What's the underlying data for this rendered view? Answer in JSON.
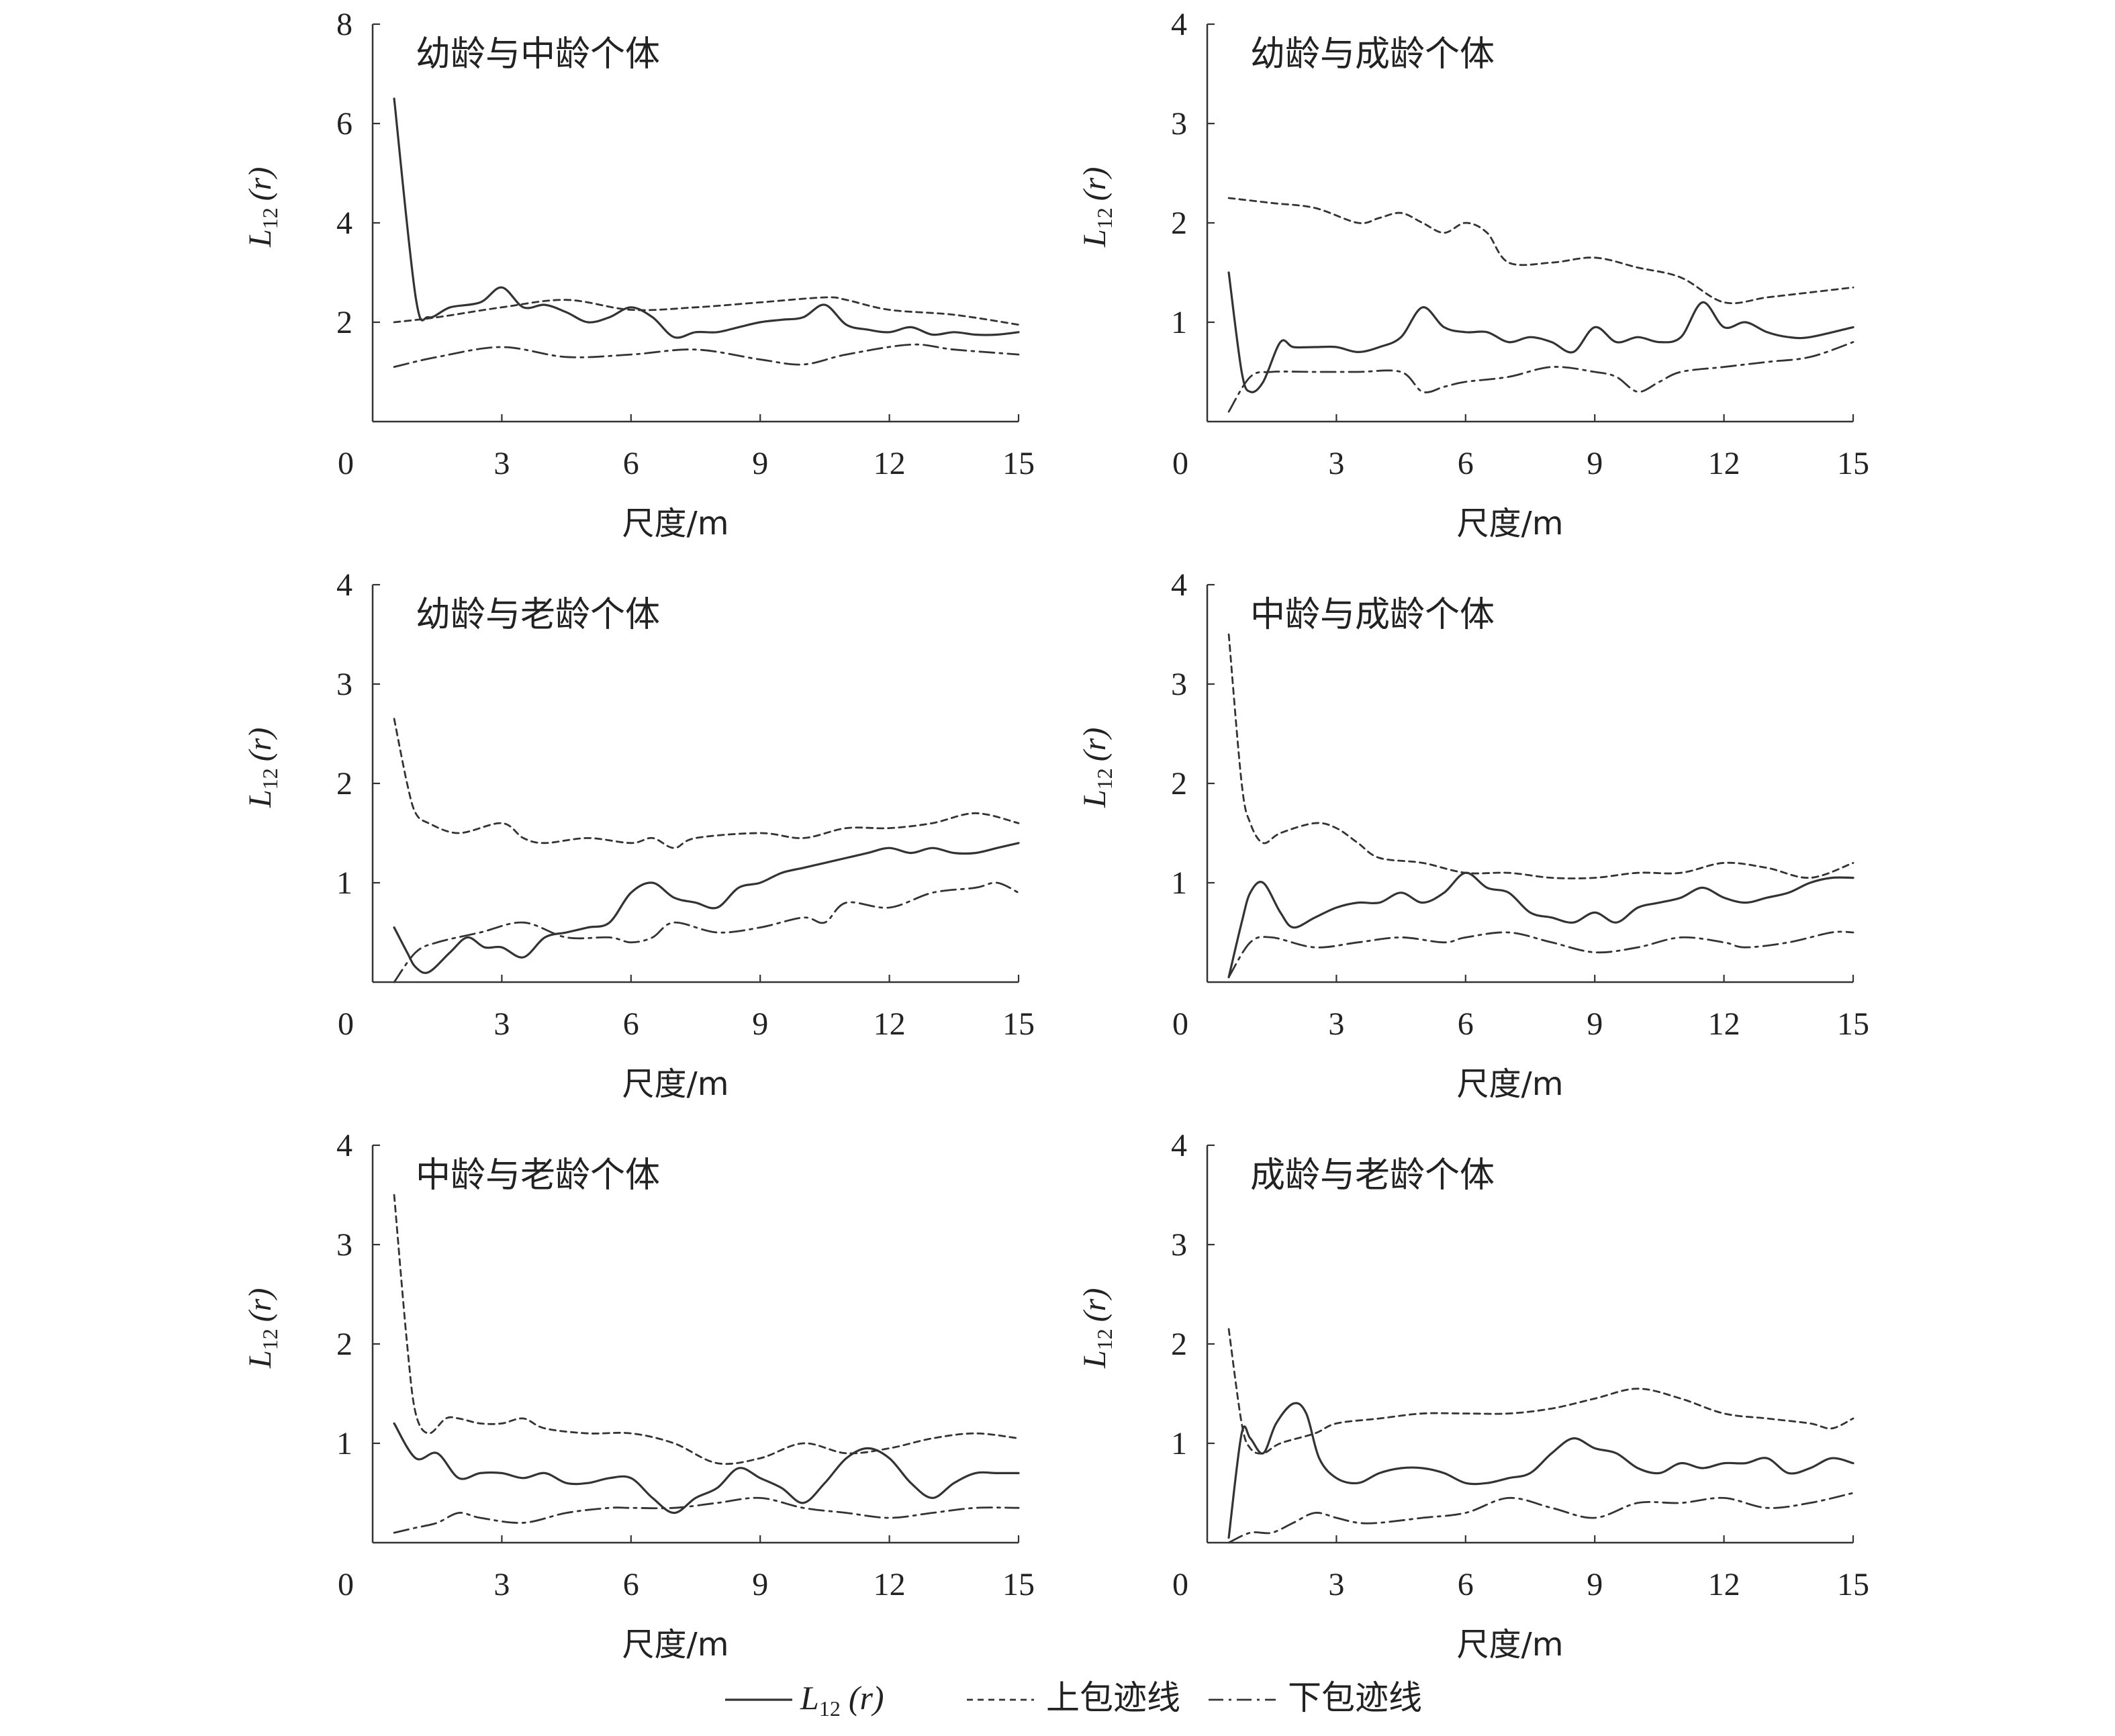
{
  "chart_data": [
    {
      "type": "line",
      "title": "幼龄与中龄个体",
      "xlabel": "尺度/m",
      "ylabel_main": "L",
      "ylabel_sub": "12",
      "ylabel_arg": "(r)",
      "xlim": [
        0,
        15
      ],
      "ylim": [
        0,
        8
      ],
      "xticks": [
        "0",
        "3",
        "6",
        "9",
        "12",
        "15"
      ],
      "yticks": [
        "2",
        "4",
        "6",
        "8"
      ],
      "series": [
        {
          "name": "L12(r)",
          "style": "solid",
          "x": [
            0.5,
            1.0,
            1.3,
            1.8,
            2.5,
            3.0,
            3.5,
            4.0,
            4.5,
            5.0,
            5.5,
            6.0,
            6.5,
            7.0,
            7.5,
            8.0,
            8.5,
            9.0,
            9.5,
            10.0,
            10.5,
            11.0,
            11.5,
            12.0,
            12.5,
            13.0,
            13.5,
            14.0,
            14.5,
            15.0
          ],
          "values": [
            6.5,
            2.5,
            2.1,
            2.3,
            2.4,
            2.7,
            2.3,
            2.35,
            2.2,
            2.0,
            2.1,
            2.3,
            2.1,
            1.7,
            1.8,
            1.8,
            1.9,
            2.0,
            2.05,
            2.1,
            2.35,
            1.95,
            1.85,
            1.8,
            1.9,
            1.75,
            1.8,
            1.75,
            1.75,
            1.8
          ]
        },
        {
          "name": "上包迹线",
          "style": "dashed",
          "x": [
            0.5,
            1.5,
            3.0,
            4.5,
            6.0,
            7.5,
            9.0,
            10.5,
            11.0,
            12.0,
            13.5,
            15.0
          ],
          "values": [
            2.0,
            2.1,
            2.3,
            2.45,
            2.25,
            2.3,
            2.4,
            2.5,
            2.45,
            2.25,
            2.15,
            1.95
          ]
        },
        {
          "name": "下包迹线",
          "style": "dashdot",
          "x": [
            0.5,
            1.5,
            3.0,
            4.5,
            6.0,
            7.5,
            9.0,
            10.0,
            11.0,
            12.5,
            13.5,
            15.0
          ],
          "values": [
            1.1,
            1.3,
            1.5,
            1.3,
            1.35,
            1.45,
            1.25,
            1.15,
            1.35,
            1.55,
            1.45,
            1.35
          ]
        }
      ]
    },
    {
      "type": "line",
      "title": "幼龄与成龄个体",
      "xlabel": "尺度/m",
      "ylabel_main": "L",
      "ylabel_sub": "12",
      "ylabel_arg": "(r)",
      "xlim": [
        0,
        15
      ],
      "ylim": [
        0,
        4
      ],
      "xticks": [
        "0",
        "3",
        "6",
        "9",
        "12",
        "15"
      ],
      "yticks": [
        "1",
        "2",
        "3",
        "4"
      ],
      "series": [
        {
          "name": "L12(r)",
          "style": "solid",
          "x": [
            0.5,
            0.8,
            1.0,
            1.3,
            1.7,
            2.0,
            2.5,
            3.0,
            3.5,
            4.0,
            4.5,
            5.0,
            5.5,
            6.0,
            6.5,
            7.0,
            7.5,
            8.0,
            8.5,
            9.0,
            9.5,
            10.0,
            10.5,
            11.0,
            11.5,
            12.0,
            12.5,
            13.0,
            13.5,
            14.0,
            15.0
          ],
          "values": [
            1.5,
            0.5,
            0.3,
            0.4,
            0.8,
            0.75,
            0.75,
            0.75,
            0.7,
            0.75,
            0.85,
            1.15,
            0.95,
            0.9,
            0.9,
            0.8,
            0.85,
            0.8,
            0.7,
            0.95,
            0.8,
            0.85,
            0.8,
            0.85,
            1.2,
            0.95,
            1.0,
            0.9,
            0.85,
            0.85,
            0.95
          ]
        },
        {
          "name": "上包迹线",
          "style": "dashed",
          "x": [
            0.5,
            1.5,
            2.5,
            3.5,
            4.0,
            4.5,
            5.0,
            5.5,
            6.0,
            6.5,
            7.0,
            8.0,
            9.0,
            10.0,
            11.0,
            12.0,
            13.0,
            14.0,
            15.0
          ],
          "values": [
            2.25,
            2.2,
            2.15,
            2.0,
            2.05,
            2.1,
            2.0,
            1.9,
            2.0,
            1.9,
            1.6,
            1.6,
            1.65,
            1.55,
            1.45,
            1.2,
            1.25,
            1.3,
            1.35
          ]
        },
        {
          "name": "下包迹线",
          "style": "dashdot",
          "x": [
            0.5,
            1.0,
            1.5,
            2.5,
            3.5,
            4.5,
            5.0,
            5.5,
            6.0,
            7.0,
            8.0,
            9.0,
            9.5,
            10.0,
            10.5,
            11.0,
            12.0,
            13.0,
            14.0,
            15.0
          ],
          "values": [
            0.1,
            0.45,
            0.5,
            0.5,
            0.5,
            0.5,
            0.3,
            0.35,
            0.4,
            0.45,
            0.55,
            0.5,
            0.45,
            0.3,
            0.4,
            0.5,
            0.55,
            0.6,
            0.65,
            0.8
          ]
        }
      ]
    },
    {
      "type": "line",
      "title": "幼龄与老龄个体",
      "xlabel": "尺度/m",
      "ylabel_main": "L",
      "ylabel_sub": "12",
      "ylabel_arg": "(r)",
      "xlim": [
        0,
        15
      ],
      "ylim": [
        0,
        4
      ],
      "xticks": [
        "0",
        "3",
        "6",
        "9",
        "12",
        "15"
      ],
      "yticks": [
        "1",
        "2",
        "3",
        "4"
      ],
      "series": [
        {
          "name": "L12(r)",
          "style": "solid",
          "x": [
            0.5,
            0.8,
            1.0,
            1.3,
            1.8,
            2.2,
            2.6,
            3.0,
            3.5,
            4.0,
            4.5,
            5.0,
            5.5,
            6.0,
            6.5,
            7.0,
            7.5,
            8.0,
            8.5,
            9.0,
            9.5,
            10.0,
            10.5,
            11.0,
            11.5,
            12.0,
            12.5,
            13.0,
            13.5,
            14.0,
            14.5,
            15.0
          ],
          "values": [
            0.55,
            0.3,
            0.15,
            0.1,
            0.3,
            0.45,
            0.35,
            0.35,
            0.25,
            0.45,
            0.5,
            0.55,
            0.6,
            0.9,
            1.0,
            0.85,
            0.8,
            0.75,
            0.95,
            1.0,
            1.1,
            1.15,
            1.2,
            1.25,
            1.3,
            1.35,
            1.3,
            1.35,
            1.3,
            1.3,
            1.35,
            1.4
          ]
        },
        {
          "name": "上包迹线",
          "style": "dashed",
          "x": [
            0.5,
            0.8,
            1.0,
            1.3,
            2.0,
            3.0,
            3.5,
            4.0,
            5.0,
            6.0,
            6.5,
            7.0,
            7.5,
            9.0,
            10.0,
            11.0,
            12.0,
            13.0,
            14.0,
            15.0
          ],
          "values": [
            2.65,
            2.0,
            1.7,
            1.6,
            1.5,
            1.6,
            1.45,
            1.4,
            1.45,
            1.4,
            1.45,
            1.35,
            1.45,
            1.5,
            1.45,
            1.55,
            1.55,
            1.6,
            1.7,
            1.6
          ]
        },
        {
          "name": "下包迹线",
          "style": "dashdot",
          "x": [
            0.5,
            1.0,
            1.5,
            2.5,
            3.5,
            4.5,
            5.5,
            6.0,
            6.5,
            7.0,
            8.0,
            9.0,
            10.0,
            10.5,
            11.0,
            12.0,
            13.0,
            14.0,
            14.5,
            15.0
          ],
          "values": [
            0.0,
            0.3,
            0.4,
            0.5,
            0.6,
            0.45,
            0.45,
            0.4,
            0.45,
            0.6,
            0.5,
            0.55,
            0.65,
            0.6,
            0.8,
            0.75,
            0.9,
            0.95,
            1.0,
            0.9
          ]
        }
      ]
    },
    {
      "type": "line",
      "title": "中龄与成龄个体",
      "xlabel": "尺度/m",
      "ylabel_main": "L",
      "ylabel_sub": "12",
      "ylabel_arg": "(r)",
      "xlim": [
        0,
        15
      ],
      "ylim": [
        0,
        4
      ],
      "xticks": [
        "0",
        "3",
        "6",
        "9",
        "12",
        "15"
      ],
      "yticks": [
        "1",
        "2",
        "3",
        "4"
      ],
      "series": [
        {
          "name": "L12(r)",
          "style": "solid",
          "x": [
            0.5,
            0.8,
            1.0,
            1.3,
            1.7,
            2.0,
            2.5,
            3.0,
            3.5,
            4.0,
            4.5,
            5.0,
            5.5,
            6.0,
            6.5,
            7.0,
            7.5,
            8.0,
            8.5,
            9.0,
            9.5,
            10.0,
            10.5,
            11.0,
            11.5,
            12.0,
            12.5,
            13.0,
            13.5,
            14.0,
            14.5,
            15.0
          ],
          "values": [
            0.05,
            0.6,
            0.9,
            1.0,
            0.7,
            0.55,
            0.65,
            0.75,
            0.8,
            0.8,
            0.9,
            0.8,
            0.9,
            1.1,
            0.95,
            0.9,
            0.7,
            0.65,
            0.6,
            0.7,
            0.6,
            0.75,
            0.8,
            0.85,
            0.95,
            0.85,
            0.8,
            0.85,
            0.9,
            1.0,
            1.05,
            1.05
          ]
        },
        {
          "name": "上包迹线",
          "style": "dashed",
          "x": [
            0.5,
            0.8,
            1.0,
            1.3,
            1.7,
            2.5,
            3.0,
            3.5,
            4.0,
            5.0,
            6.0,
            7.0,
            8.0,
            9.0,
            10.0,
            11.0,
            12.0,
            13.0,
            14.0,
            15.0
          ],
          "values": [
            3.5,
            2.0,
            1.6,
            1.4,
            1.5,
            1.6,
            1.55,
            1.4,
            1.25,
            1.2,
            1.1,
            1.1,
            1.05,
            1.05,
            1.1,
            1.1,
            1.2,
            1.15,
            1.05,
            1.2
          ]
        },
        {
          "name": "下包迹线",
          "style": "dashdot",
          "x": [
            0.5,
            1.0,
            1.5,
            2.5,
            3.5,
            4.5,
            5.5,
            6.0,
            7.0,
            8.0,
            9.0,
            10.0,
            11.0,
            12.0,
            12.5,
            13.5,
            14.5,
            15.0
          ],
          "values": [
            0.05,
            0.4,
            0.45,
            0.35,
            0.4,
            0.45,
            0.4,
            0.45,
            0.5,
            0.4,
            0.3,
            0.35,
            0.45,
            0.4,
            0.35,
            0.4,
            0.5,
            0.5
          ]
        }
      ]
    },
    {
      "type": "line",
      "title": "中龄与老龄个体",
      "xlabel": "尺度/m",
      "ylabel_main": "L",
      "ylabel_sub": "12",
      "ylabel_arg": "(r)",
      "xlim": [
        0,
        15
      ],
      "ylim": [
        0,
        4
      ],
      "xticks": [
        "0",
        "3",
        "6",
        "9",
        "12",
        "15"
      ],
      "yticks": [
        "1",
        "2",
        "3",
        "4"
      ],
      "series": [
        {
          "name": "L12(r)",
          "style": "solid",
          "x": [
            0.5,
            1.0,
            1.5,
            2.0,
            2.5,
            3.0,
            3.5,
            4.0,
            4.5,
            5.0,
            5.5,
            6.0,
            6.5,
            7.0,
            7.5,
            8.0,
            8.5,
            9.0,
            9.5,
            10.0,
            10.5,
            11.0,
            11.5,
            12.0,
            12.5,
            13.0,
            13.5,
            14.0,
            14.5,
            15.0
          ],
          "values": [
            1.2,
            0.85,
            0.9,
            0.65,
            0.7,
            0.7,
            0.65,
            0.7,
            0.6,
            0.6,
            0.65,
            0.65,
            0.45,
            0.3,
            0.45,
            0.55,
            0.75,
            0.65,
            0.55,
            0.4,
            0.6,
            0.85,
            0.95,
            0.85,
            0.6,
            0.45,
            0.6,
            0.7,
            0.7,
            0.7
          ]
        },
        {
          "name": "上包迹线",
          "style": "dashed",
          "x": [
            0.5,
            0.8,
            1.0,
            1.3,
            1.7,
            2.0,
            2.5,
            3.0,
            3.5,
            4.0,
            5.0,
            6.0,
            7.0,
            8.0,
            9.0,
            10.0,
            11.0,
            12.0,
            13.0,
            14.0,
            15.0
          ],
          "values": [
            3.5,
            2.0,
            1.3,
            1.1,
            1.25,
            1.25,
            1.2,
            1.2,
            1.25,
            1.15,
            1.1,
            1.1,
            1.0,
            0.8,
            0.85,
            1.0,
            0.9,
            0.95,
            1.05,
            1.1,
            1.05
          ]
        },
        {
          "name": "下包迹线",
          "style": "dashdot",
          "x": [
            0.5,
            1.0,
            1.5,
            2.0,
            2.5,
            3.5,
            4.5,
            5.5,
            6.0,
            7.0,
            8.0,
            9.0,
            10.0,
            11.0,
            12.0,
            13.0,
            14.0,
            15.0
          ],
          "values": [
            0.1,
            0.15,
            0.2,
            0.3,
            0.25,
            0.2,
            0.3,
            0.35,
            0.35,
            0.35,
            0.4,
            0.45,
            0.35,
            0.3,
            0.25,
            0.3,
            0.35,
            0.35
          ]
        }
      ]
    },
    {
      "type": "line",
      "title": "成龄与老龄个体",
      "xlabel": "尺度/m",
      "ylabel_main": "L",
      "ylabel_sub": "12",
      "ylabel_arg": "(r)",
      "xlim": [
        0,
        15
      ],
      "ylim": [
        0,
        4
      ],
      "xticks": [
        "0",
        "3",
        "6",
        "9",
        "12",
        "15"
      ],
      "yticks": [
        "1",
        "2",
        "3",
        "4"
      ],
      "series": [
        {
          "name": "L12(r)",
          "style": "solid",
          "x": [
            0.5,
            0.8,
            1.0,
            1.3,
            1.6,
            2.0,
            2.3,
            2.6,
            3.0,
            3.5,
            4.0,
            4.5,
            5.0,
            5.5,
            6.0,
            6.5,
            7.0,
            7.5,
            8.0,
            8.5,
            9.0,
            9.5,
            10.0,
            10.5,
            11.0,
            11.5,
            12.0,
            12.5,
            13.0,
            13.5,
            14.0,
            14.5,
            15.0
          ],
          "values": [
            0.05,
            1.1,
            1.05,
            0.9,
            1.2,
            1.4,
            1.3,
            0.85,
            0.65,
            0.6,
            0.7,
            0.75,
            0.75,
            0.7,
            0.6,
            0.6,
            0.65,
            0.7,
            0.9,
            1.05,
            0.95,
            0.9,
            0.75,
            0.7,
            0.8,
            0.75,
            0.8,
            0.8,
            0.85,
            0.7,
            0.75,
            0.85,
            0.8
          ]
        },
        {
          "name": "上包迹线",
          "style": "dashed",
          "x": [
            0.5,
            0.8,
            1.0,
            1.3,
            1.7,
            2.5,
            3.0,
            4.0,
            5.0,
            6.0,
            7.0,
            8.0,
            9.0,
            10.0,
            11.0,
            12.0,
            13.0,
            14.0,
            14.5,
            15.0
          ],
          "values": [
            2.15,
            1.2,
            0.95,
            0.9,
            1.0,
            1.1,
            1.2,
            1.25,
            1.3,
            1.3,
            1.3,
            1.35,
            1.45,
            1.55,
            1.45,
            1.3,
            1.25,
            1.2,
            1.15,
            1.25
          ]
        },
        {
          "name": "下包迹线",
          "style": "dashdot",
          "x": [
            0.5,
            1.0,
            1.5,
            2.0,
            2.5,
            3.0,
            3.5,
            4.0,
            5.0,
            6.0,
            7.0,
            8.0,
            9.0,
            10.0,
            11.0,
            12.0,
            13.0,
            14.0,
            15.0
          ],
          "values": [
            0.0,
            0.1,
            0.1,
            0.2,
            0.3,
            0.25,
            0.2,
            0.2,
            0.25,
            0.3,
            0.45,
            0.35,
            0.25,
            0.4,
            0.4,
            0.45,
            0.35,
            0.4,
            0.5
          ]
        }
      ]
    }
  ],
  "legend": {
    "items": [
      {
        "style": "solid",
        "label_main": "L",
        "label_sub": "12",
        "label_arg": "(r)",
        "label": ""
      },
      {
        "style": "dashed",
        "label_main": "",
        "label_sub": "",
        "label_arg": "",
        "label": "上包迹线"
      },
      {
        "style": "dashdot",
        "label_main": "",
        "label_sub": "",
        "label_arg": "",
        "label": "下包迹线"
      }
    ]
  }
}
